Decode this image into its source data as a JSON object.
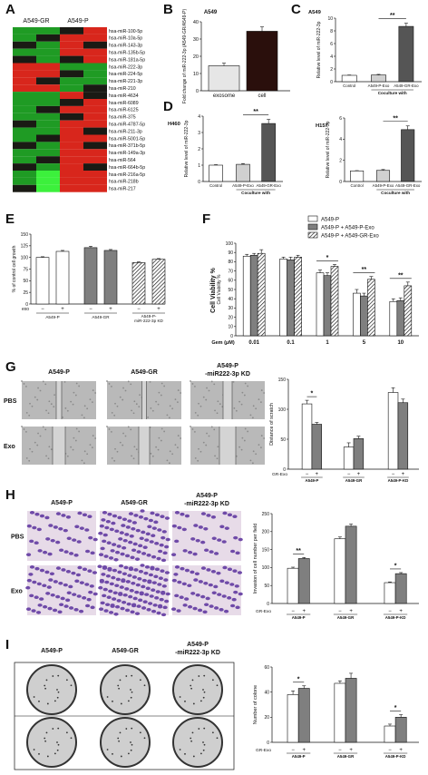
{
  "panel_letters": {
    "a": "A",
    "b": "B",
    "c": "C",
    "d": "D",
    "e": "E",
    "f": "F",
    "g": "G",
    "h": "H",
    "i": "I"
  },
  "heatmap": {
    "col_left": "A549-GR",
    "col_right": "A549-P",
    "rows": [
      "hsa-miR-100-5p",
      "hsa-miR-10a-5p",
      "hsa-miR-143-3p",
      "hsa-miR-135b-5p",
      "hsa-miR-181a-5p",
      "hsa-miR-222-3p",
      "hsa-miR-224-5p",
      "hsa-miR-221-3p",
      "hsa-miR-210",
      "hsa-miR-4634",
      "hsa-miR-6089",
      "hsa-miR-6125",
      "hsa-miR-375",
      "hsa-miR-4787-5p",
      "hsa-miR-211-3p",
      "hsa-miR-5001-5p",
      "hsa-miR-371b-5p",
      "hsa-miR-149a-3p",
      "hsa-miR-564",
      "hsa-miR-664b-5p",
      "hsa-miR-216a-5p",
      "hsa-miR-218b",
      "hsa-miR-217"
    ],
    "colors": {
      "high": "#e8201a",
      "low": "#1ec81e",
      "mid": "#111111"
    }
  },
  "common": {
    "coculture_label": "Coculture with",
    "gr_exo": "GR-Exo",
    "exo": "exo",
    "minus": "−",
    "plus": "+",
    "bar_colors": {
      "white": "#ffffff",
      "gray": "#7f7f7f",
      "dark": "#555555"
    }
  },
  "chart_data": [
    {
      "id": "B",
      "type": "bar",
      "title": "A549",
      "ylabel": "Fold change of miR-222-3p (A549-GR/A549-P)",
      "categories": [
        "exosome",
        "cell"
      ],
      "values": [
        14.5,
        34.5
      ],
      "errors": [
        1.5,
        2.5
      ],
      "yticks": [
        "0",
        "10",
        "20",
        "30",
        "40"
      ],
      "ylim": [
        0,
        40
      ],
      "colors": [
        "#e6e6e6",
        "#2a0f0c"
      ]
    },
    {
      "id": "C",
      "type": "bar",
      "title": "A549",
      "ylabel": "Relative level of miR-222-3p",
      "categories": [
        "Control",
        "A549-P-Exo",
        "A549-GR-Exo"
      ],
      "values": [
        1.0,
        1.05,
        8.7
      ],
      "errors": [
        0.05,
        0.1,
        0.5
      ],
      "yticks": [
        "0",
        "2",
        "4",
        "6",
        "8",
        "10"
      ],
      "ylim": [
        0,
        10
      ],
      "significance": "**"
    },
    {
      "id": "D1",
      "type": "bar",
      "title": "H460",
      "ylabel": "Relative level of miR-222-3p",
      "categories": [
        "Control",
        "A549-P-Exo",
        "A549-GR-Exo"
      ],
      "values": [
        1.0,
        1.05,
        3.55
      ],
      "errors": [
        0.03,
        0.05,
        0.25
      ],
      "yticks": [
        "0",
        "1",
        "2",
        "3",
        "4"
      ],
      "ylim": [
        0,
        4
      ],
      "significance": "**"
    },
    {
      "id": "D2",
      "type": "bar",
      "title": "H157",
      "ylabel": "Relative level of miR-222-3p",
      "categories": [
        "Control",
        "A549-P-Exo",
        "A549-GR-Exo"
      ],
      "values": [
        1.0,
        1.05,
        4.9
      ],
      "errors": [
        0.03,
        0.08,
        0.35
      ],
      "yticks": [
        "0",
        "2",
        "4",
        "6"
      ],
      "ylim": [
        0,
        6
      ],
      "significance": "**"
    },
    {
      "id": "E",
      "type": "bar",
      "ylabel": "% of control cell growth",
      "groups": [
        "A549-P",
        "A549-GR",
        "A549-P-miR-222-3p KD"
      ],
      "exo_signs": [
        "−",
        "+",
        "−",
        "+",
        "−",
        "+"
      ],
      "values": [
        100,
        113,
        121,
        115,
        89,
        96
      ],
      "errors": [
        1.5,
        2,
        3,
        2,
        1.5,
        1.5
      ],
      "styles": [
        "white",
        "white",
        "gray",
        "gray",
        "hatch",
        "hatch"
      ],
      "yticks": [
        "0",
        "25",
        "50",
        "75",
        "100",
        "125",
        "150"
      ],
      "ylim": [
        0,
        150
      ]
    },
    {
      "id": "F",
      "type": "bar",
      "ylabel": "Cell Viability %",
      "xlabel": "Gem (μM)",
      "categories": [
        "0.01",
        "0.1",
        "1",
        "5",
        "10"
      ],
      "series": [
        {
          "name": "A549-P",
          "values": [
            86,
            83,
            68,
            46,
            37
          ],
          "errors": [
            2,
            2,
            3,
            4,
            3
          ],
          "style": "white"
        },
        {
          "name": "A549-P + A549-P-Exo",
          "values": [
            87,
            82,
            65,
            43,
            38
          ],
          "errors": [
            2,
            3,
            3,
            3,
            3
          ],
          "style": "gray"
        },
        {
          "name": "A549-P + A549-GR-Exo",
          "values": [
            89,
            85,
            75,
            61,
            54
          ],
          "errors": [
            4,
            2,
            2,
            3,
            4
          ],
          "style": "hatch"
        }
      ],
      "significance": [
        "",
        "",
        "*",
        "**",
        "**"
      ],
      "yticks": [
        "0",
        "10",
        "20",
        "30",
        "40",
        "50",
        "60",
        "70",
        "80",
        "90",
        "100"
      ],
      "ylim": [
        0,
        100
      ]
    },
    {
      "id": "G",
      "type": "bar",
      "ylabel": "Distance of scratch",
      "groups": [
        "A549-P",
        "A549-GR",
        "A549-P-KD"
      ],
      "values": [
        109,
        75,
        37,
        51,
        128,
        111
      ],
      "errors": [
        6,
        3,
        7,
        4,
        8,
        6
      ],
      "yticks": [
        "0",
        "50",
        "100",
        "150"
      ],
      "ylim": [
        0,
        150
      ],
      "significance": "*"
    },
    {
      "id": "H",
      "type": "bar",
      "ylabel": "Invasion of cell number per field",
      "groups": [
        "A549-P",
        "A549-GR",
        "A549-P-KD"
      ],
      "values": [
        98,
        125,
        180,
        215,
        58,
        83
      ],
      "errors": [
        3,
        3,
        5,
        6,
        2,
        3
      ],
      "yticks": [
        "0",
        "50",
        "100",
        "150",
        "200",
        "250"
      ],
      "ylim": [
        0,
        250
      ],
      "significance": [
        "**",
        "*"
      ]
    },
    {
      "id": "I",
      "type": "bar",
      "ylabel": "Number of colone",
      "groups": [
        "A549-P",
        "A549-GR",
        "A549-P-KD"
      ],
      "values": [
        38,
        43,
        47,
        51,
        13,
        20
      ],
      "errors": [
        3,
        2,
        2,
        4,
        1.5,
        2
      ],
      "yticks": [
        "0",
        "20",
        "40",
        "60"
      ],
      "ylim": [
        0,
        60
      ],
      "significance": [
        "*",
        "*"
      ]
    }
  ],
  "micrographs": {
    "g_cols": [
      "A549-P",
      "A549-GR",
      "A549-P -miR222-3p KD"
    ],
    "g_rows": [
      "PBS",
      "Exo"
    ],
    "h_cols": [
      "A549-P",
      "A549-GR",
      "A549-P -miR222-3p KD"
    ],
    "h_rows": [
      "PBS",
      "Exo"
    ],
    "i_cols": [
      "A549-P",
      "A549-GR",
      "A549-P -miR222-3p KD"
    ]
  }
}
